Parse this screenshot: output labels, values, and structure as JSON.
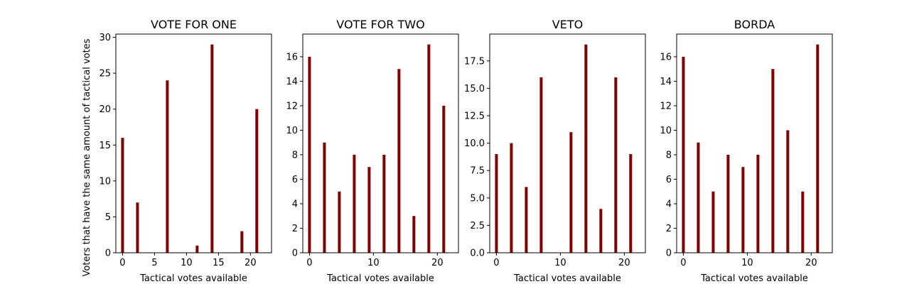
{
  "chart_data": [
    {
      "type": "bar",
      "title": "VOTE FOR ONE",
      "xlabel": "Tactical votes available",
      "ylabel": "Voters that have the same amount of tactical votes",
      "x": [
        0,
        2.333,
        4.667,
        7,
        9.333,
        11.667,
        14,
        16.333,
        18.667,
        21
      ],
      "values": [
        16,
        7,
        0,
        24,
        0,
        1,
        29,
        0,
        3,
        20
      ],
      "xlim": [
        -1.05,
        23.3
      ],
      "ylim": [
        0,
        30.45
      ],
      "xticks": [
        "0",
        "5",
        "10",
        "15",
        "20"
      ],
      "yticks": [
        "0",
        "5",
        "10",
        "15",
        "20",
        "25",
        "30"
      ],
      "bar_color": "#7f0000"
    },
    {
      "type": "bar",
      "title": "VOTE FOR TWO",
      "xlabel": "Tactical votes available",
      "ylabel": "",
      "x": [
        0,
        2.333,
        4.667,
        7,
        9.333,
        11.667,
        14,
        16.333,
        18.667,
        21
      ],
      "values": [
        16,
        9,
        5,
        8,
        7,
        8,
        15,
        3,
        17,
        12
      ],
      "xlim": [
        -1.05,
        23.3
      ],
      "ylim": [
        0,
        17.85
      ],
      "xticks": [
        "0",
        "10",
        "20"
      ],
      "yticks": [
        "0",
        "2",
        "4",
        "6",
        "8",
        "10",
        "12",
        "14",
        "16"
      ],
      "bar_color": "#7f0000"
    },
    {
      "type": "bar",
      "title": "VETO",
      "xlabel": "Tactical votes available",
      "ylabel": "",
      "x": [
        0,
        2.333,
        4.667,
        7,
        9.333,
        11.667,
        14,
        16.333,
        18.667,
        21
      ],
      "values": [
        9,
        10,
        6,
        16,
        0,
        11,
        19,
        4,
        16,
        9
      ],
      "xlim": [
        -1.05,
        23.3
      ],
      "ylim": [
        0,
        19.95
      ],
      "xticks": [
        "0",
        "10",
        "20"
      ],
      "yticks": [
        "0.0",
        "2.5",
        "5.0",
        "7.5",
        "10.0",
        "12.5",
        "15.0",
        "17.5"
      ],
      "bar_color": "#7f0000"
    },
    {
      "type": "bar",
      "title": "BORDA",
      "xlabel": "Tactical votes available",
      "ylabel": "",
      "x": [
        0,
        2.333,
        4.667,
        7,
        9.333,
        11.667,
        14,
        16.333,
        18.667,
        21
      ],
      "values": [
        16,
        9,
        5,
        8,
        7,
        8,
        15,
        10,
        5,
        17
      ],
      "xlim": [
        -1.05,
        23.3
      ],
      "ylim": [
        0,
        17.85
      ],
      "xticks": [
        "0",
        "10",
        "20"
      ],
      "yticks": [
        "0",
        "2",
        "4",
        "6",
        "8",
        "10",
        "12",
        "14",
        "16"
      ],
      "bar_color": "#7f0000"
    }
  ]
}
